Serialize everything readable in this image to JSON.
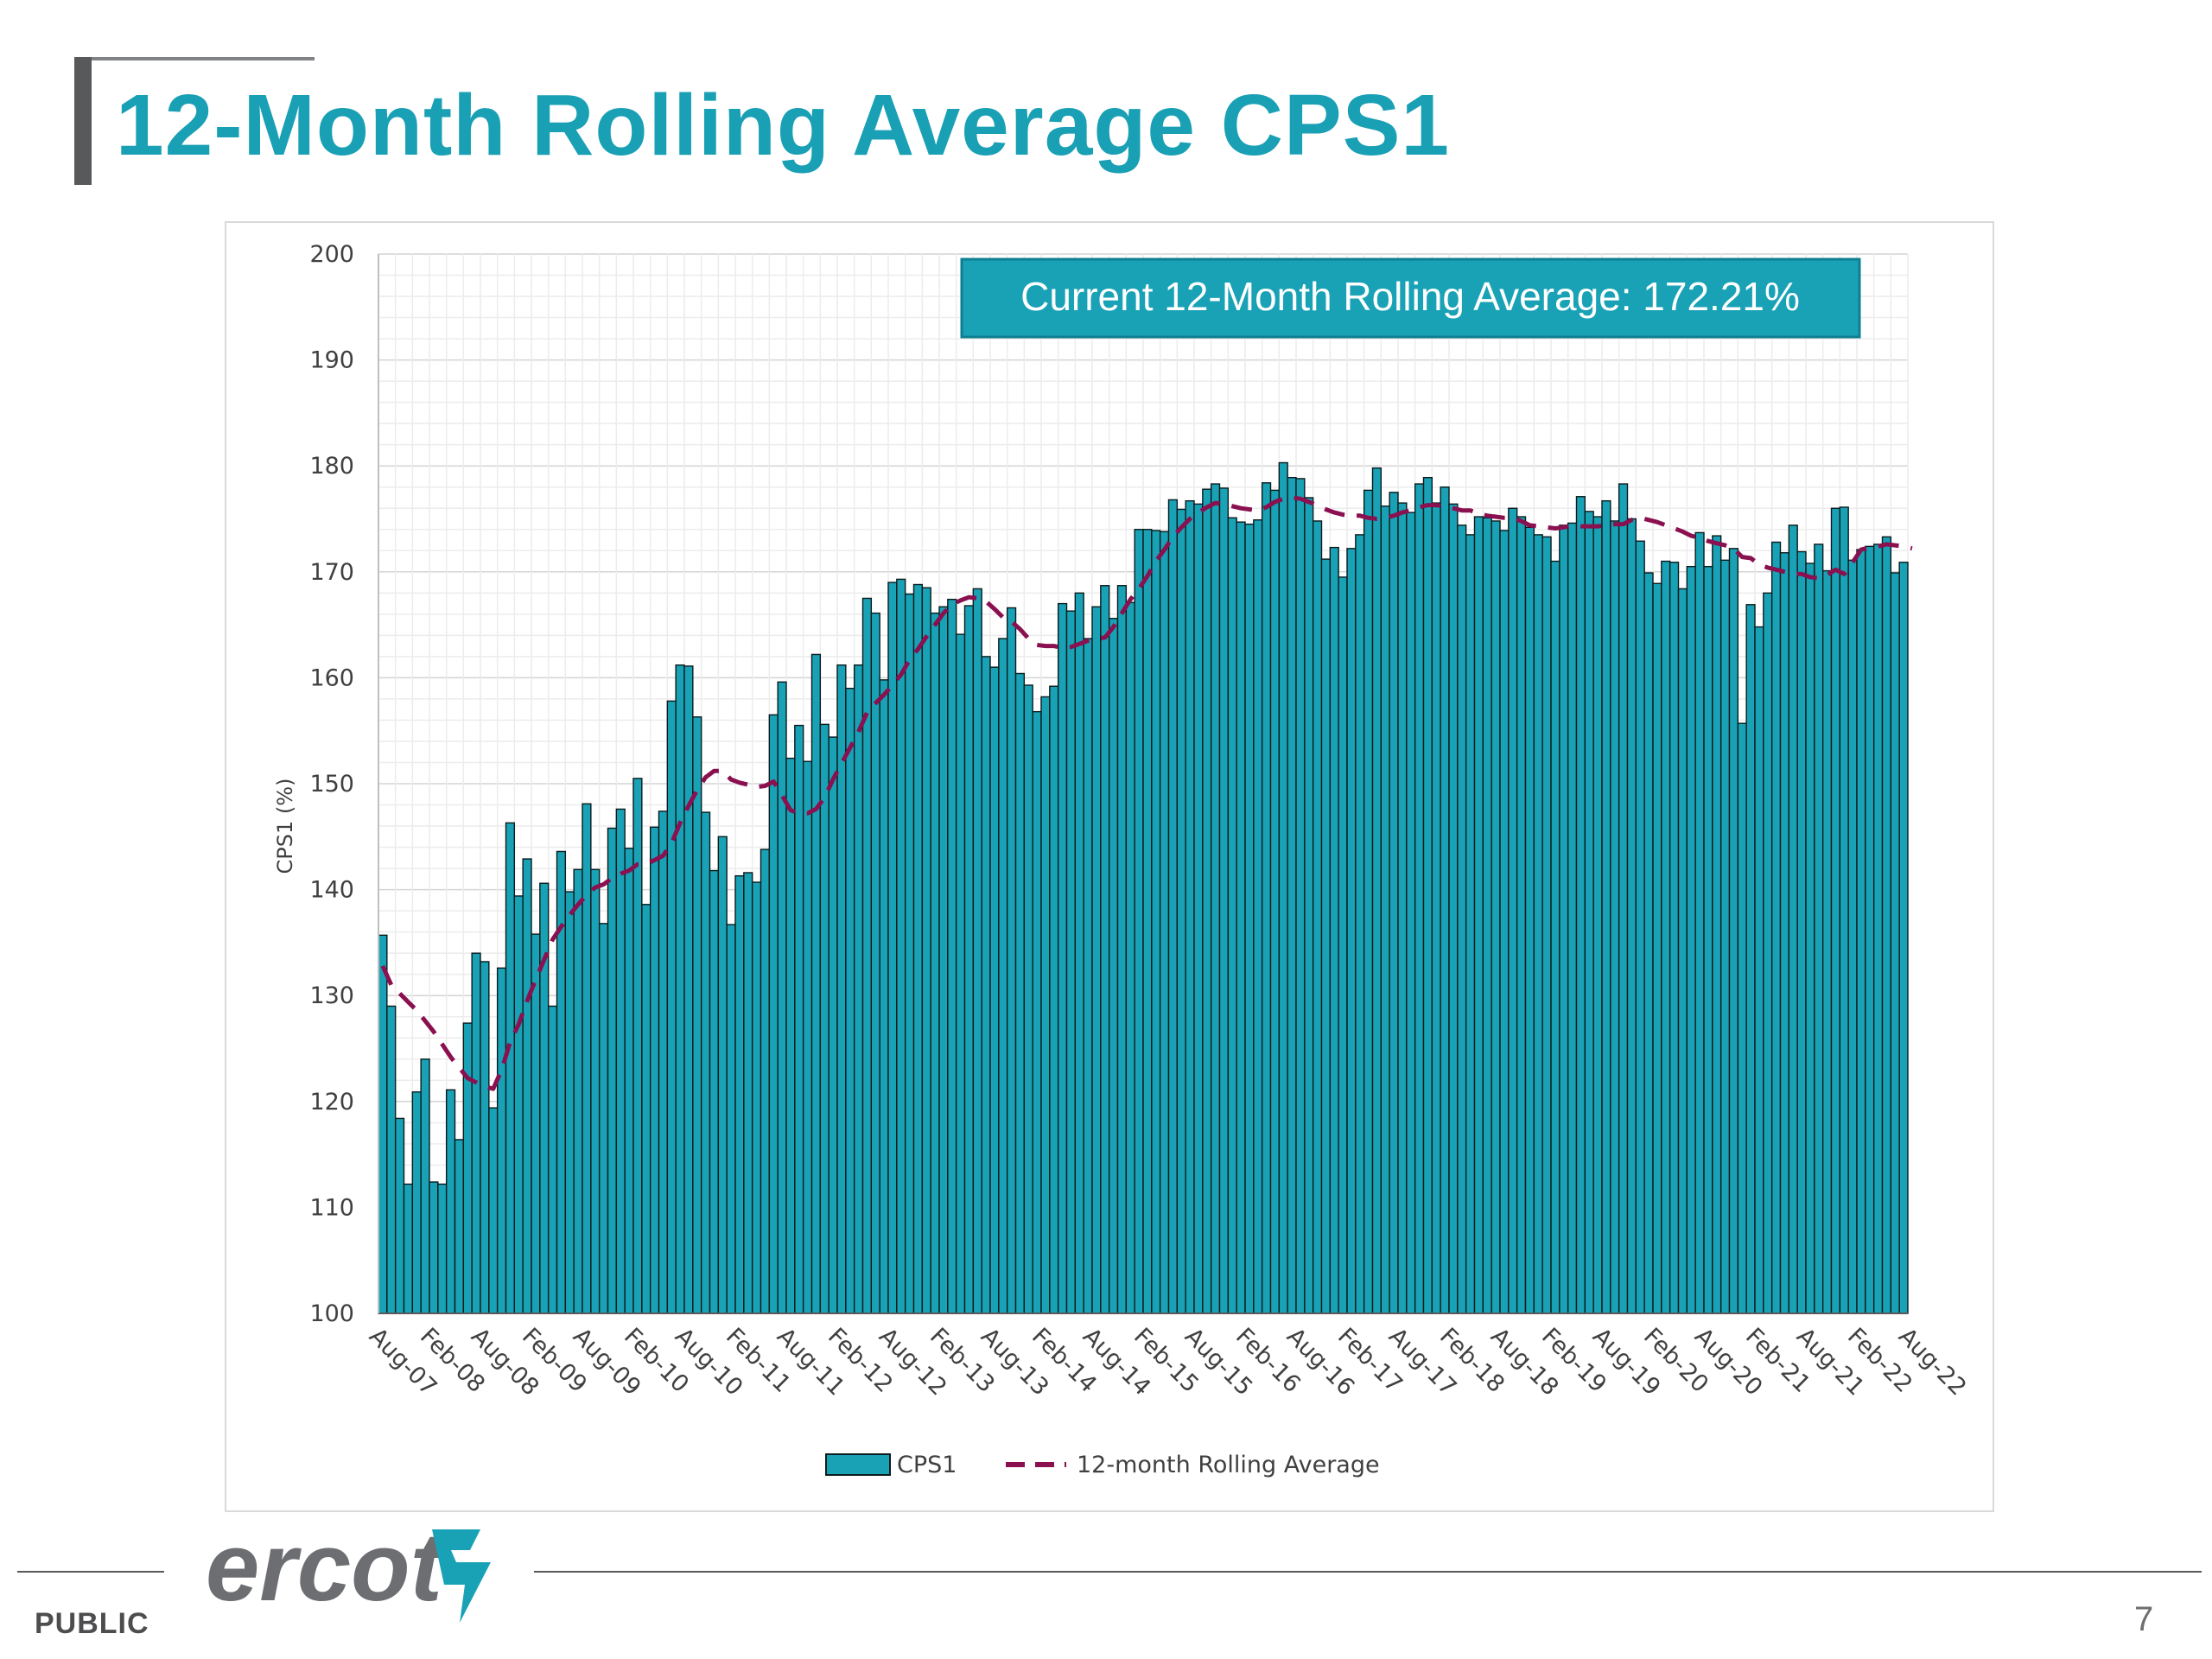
{
  "slide": {
    "title": "12-Month Rolling Average CPS1",
    "footer_label": "PUBLIC",
    "page_number": "7",
    "logo_text": "ercot"
  },
  "chart_data": {
    "type": "bar",
    "title": "",
    "xlabel": "",
    "ylabel": "CPS1 (%)",
    "ylim": [
      100,
      200
    ],
    "yticks": [
      100,
      110,
      120,
      130,
      140,
      150,
      160,
      170,
      180,
      190,
      200
    ],
    "x_tick_labels": [
      "Aug-07",
      "Feb-08",
      "Aug-08",
      "Feb-09",
      "Aug-09",
      "Feb-10",
      "Aug-10",
      "Feb-11",
      "Aug-11",
      "Feb-12",
      "Aug-12",
      "Feb-13",
      "Aug-13",
      "Feb-14",
      "Aug-14",
      "Feb-15",
      "Aug-15",
      "Feb-16",
      "Aug-16",
      "Feb-17",
      "Aug-17",
      "Feb-18",
      "Aug-18",
      "Feb-19",
      "Aug-19",
      "Feb-20",
      "Aug-20",
      "Feb-21",
      "Aug-21",
      "Feb-22",
      "Aug-22"
    ],
    "months_per_tick": 6,
    "grid": true,
    "annotation": "Current 12-Month Rolling Average: 172.21%",
    "legend_position": "bottom",
    "colors": {
      "bar": "#19a2b6",
      "bar_edge": "#0b1a1c",
      "rolling": "#8a1050",
      "annotation_bg": "#19a2b6",
      "grid": "#e3e3e3"
    },
    "series": [
      {
        "name": "CPS1",
        "style": "bar",
        "values": [
          135.7,
          129,
          118.4,
          112.2,
          120.9,
          124,
          112.4,
          112.2,
          121.1,
          116.4,
          127.4,
          134,
          133.2,
          119.4,
          132.6,
          146.3,
          139.4,
          142.9,
          135.8,
          140.6,
          129,
          143.6,
          139.8,
          141.9,
          148.1,
          141.9,
          136.8,
          145.8,
          147.6,
          143.9,
          150.5,
          138.6,
          145.9,
          147.4,
          157.8,
          161.2,
          161.1,
          156.3,
          147.3,
          141.8,
          145,
          136.7,
          141.3,
          141.6,
          140.7,
          143.8,
          156.5,
          159.6,
          152.4,
          155.5,
          152.1,
          162.2,
          155.6,
          154.4,
          161.2,
          159,
          161.2,
          167.5,
          166.1,
          159.8,
          169,
          169.3,
          167.9,
          168.8,
          168.5,
          166.1,
          166.7,
          167.4,
          164.1,
          166.8,
          168.4,
          162,
          161,
          163.7,
          166.6,
          160.4,
          159.3,
          156.8,
          158.2,
          159.2,
          167,
          166.3,
          168,
          163.7,
          166.7,
          168.7,
          165.6,
          168.7,
          167.1,
          174,
          174,
          173.9,
          173.8,
          176.8,
          175.9,
          176.7,
          176.4,
          177.8,
          178.3,
          177.9,
          175.1,
          174.7,
          174.5,
          174.9,
          178.4,
          177.7,
          180.3,
          178.9,
          178.8,
          177,
          174.8,
          171.2,
          172.3,
          169.5,
          172.2,
          173.5,
          177.7,
          179.8,
          176.2,
          177.5,
          176.5,
          175.6,
          178.3,
          178.9,
          176.5,
          178,
          176.4,
          174.4,
          173.5,
          175.2,
          175.1,
          174.8,
          173.9,
          176,
          175.2,
          174.2,
          173.5,
          173.3,
          171,
          174.4,
          174.6,
          177.1,
          175.7,
          175.2,
          176.7,
          174.8,
          178.3,
          175,
          172.9,
          169.9,
          168.9,
          171,
          170.9,
          168.4,
          170.5,
          173.7,
          170.5,
          173.4,
          171.1,
          172.2,
          155.7,
          166.9,
          164.8,
          168,
          172.8,
          171.8,
          174.4,
          171.9,
          170.8,
          172.6,
          170.1,
          176,
          176.1,
          171.1,
          172.1,
          172.4,
          172.6,
          173.3,
          169.9,
          170.9
        ]
      },
      {
        "name": "12-month Rolling Average",
        "style": "dashed-line",
        "values": [
          132.8,
          131,
          130.2,
          129.4,
          128.6,
          127.6,
          126.6,
          125.4,
          124.2,
          123.2,
          122.2,
          121.8,
          121.4,
          121.2,
          123,
          125.6,
          127.3,
          129.5,
          131.5,
          133.4,
          135.3,
          136.5,
          137.6,
          138.6,
          139.5,
          140.2,
          140.5,
          141.1,
          141.5,
          141.8,
          142.4,
          142.4,
          142.8,
          143.2,
          144.4,
          146.3,
          147.9,
          149.4,
          150.6,
          151.2,
          151.2,
          150.4,
          150.1,
          149.9,
          149.7,
          149.8,
          150.2,
          148.9,
          147.5,
          147.2,
          147.2,
          147.6,
          148.7,
          150.4,
          151.9,
          153.4,
          154.9,
          156.7,
          157.6,
          158.4,
          159.3,
          160.3,
          161.7,
          162.7,
          163.9,
          165,
          166.1,
          166.9,
          167.3,
          167.6,
          167.5,
          167.2,
          166.5,
          165.7,
          165.3,
          164.6,
          163.7,
          163.1,
          163,
          163,
          162.8,
          162.9,
          163.2,
          163.5,
          163.7,
          163.8,
          164.8,
          166.1,
          167.4,
          168.4,
          169.6,
          171,
          172.1,
          173.3,
          174.2,
          175,
          175.6,
          176.1,
          176.5,
          176.4,
          176.2,
          176,
          175.9,
          175.8,
          176.1,
          176.6,
          176.9,
          177,
          176.9,
          176.6,
          176.3,
          175.9,
          175.6,
          175.4,
          175.3,
          175.3,
          175.1,
          175,
          175.1,
          175.3,
          175.6,
          175.8,
          176.1,
          176.3,
          176.3,
          176.2,
          176,
          175.8,
          175.8,
          175.5,
          175.3,
          175.2,
          175.1,
          175.1,
          174.8,
          174.4,
          174.3,
          174.2,
          174.1,
          174.2,
          174.4,
          174.3,
          174.3,
          174.3,
          174.4,
          174.5,
          174.5,
          174.9,
          175.1,
          174.9,
          174.7,
          174.4,
          174.1,
          173.8,
          173.4,
          173.2,
          172.9,
          172.7,
          172.5,
          172.2,
          171.4,
          171.3,
          170.7,
          170.4,
          170.2,
          170,
          169.8,
          169.8,
          169.5,
          169.4,
          169.7,
          170.2,
          169.8,
          170.9,
          172.1,
          172.3,
          172.4,
          172.6,
          172.5,
          172.4,
          172.21
        ]
      }
    ]
  }
}
